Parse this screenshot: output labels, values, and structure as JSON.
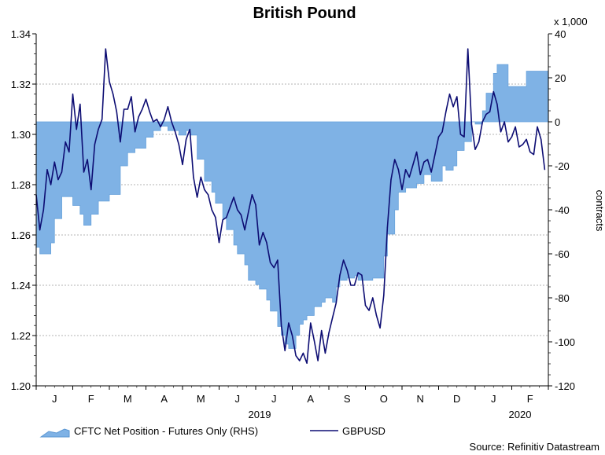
{
  "chart_data": {
    "type": "line",
    "title": "British Pound",
    "source": "Source: Refinitiv Datastream",
    "left_axis": {
      "label": "",
      "range": [
        1.2,
        1.34
      ],
      "ticks": [
        "1.20",
        "1.22",
        "1.24",
        "1.26",
        "1.28",
        "1.30",
        "1.32",
        "1.34"
      ]
    },
    "right_axis": {
      "label": "contracts",
      "multiplier": "x 1,000",
      "range": [
        -120,
        40
      ],
      "ticks": [
        "-120",
        "-100",
        "-80",
        "-60",
        "-40",
        "-20",
        "0",
        "20",
        "40"
      ]
    },
    "x_axis": {
      "months": [
        "J",
        "F",
        "M",
        "A",
        "M",
        "J",
        "J",
        "A",
        "S",
        "O",
        "N",
        "D",
        "J",
        "F"
      ],
      "year_labels": [
        "2019",
        "2020"
      ]
    },
    "legend": [
      "CFTC Net Position - Futures Only (RHS)",
      "GBPUSD"
    ],
    "series": [
      {
        "name": "GBPUSD",
        "axis": "left",
        "color": "#0d0d73",
        "x": [
          0,
          0.1,
          0.2,
          0.3,
          0.4,
          0.5,
          0.6,
          0.7,
          0.8,
          0.9,
          1,
          1.1,
          1.2,
          1.3,
          1.4,
          1.5,
          1.6,
          1.7,
          1.8,
          1.9,
          2,
          2.1,
          2.2,
          2.3,
          2.4,
          2.5,
          2.6,
          2.7,
          2.8,
          2.9,
          3,
          3.1,
          3.2,
          3.3,
          3.4,
          3.5,
          3.6,
          3.7,
          3.8,
          3.9,
          4,
          4.1,
          4.2,
          4.3,
          4.4,
          4.5,
          4.6,
          4.7,
          4.8,
          4.9,
          5,
          5.1,
          5.2,
          5.3,
          5.4,
          5.5,
          5.6,
          5.7,
          5.8,
          5.9,
          6,
          6.1,
          6.2,
          6.3,
          6.4,
          6.5,
          6.6,
          6.7,
          6.8,
          6.9,
          7,
          7.1,
          7.2,
          7.3,
          7.4,
          7.5,
          7.6,
          7.7,
          7.8,
          7.9,
          8,
          8.1,
          8.2,
          8.3,
          8.4,
          8.5,
          8.6,
          8.7,
          8.8,
          8.9,
          9,
          9.1,
          9.2,
          9.3,
          9.4,
          9.5,
          9.6,
          9.7,
          9.8,
          9.9,
          10,
          10.1,
          10.2,
          10.3,
          10.4,
          10.5,
          10.6,
          10.7,
          10.8,
          10.9,
          11,
          11.1,
          11.2,
          11.3,
          11.4,
          11.5,
          11.6,
          11.7,
          11.8,
          11.9,
          12,
          12.1,
          12.2,
          12.3,
          12.4,
          12.5,
          12.6,
          12.7,
          12.8,
          12.9,
          13,
          13.1,
          13.2,
          13.3,
          13.4,
          13.5,
          13.6,
          13.7,
          13.8,
          13.9
        ],
        "values": [
          1.276,
          1.262,
          1.27,
          1.286,
          1.28,
          1.289,
          1.282,
          1.285,
          1.297,
          1.293,
          1.316,
          1.302,
          1.312,
          1.285,
          1.29,
          1.278,
          1.296,
          1.302,
          1.306,
          1.334,
          1.321,
          1.316,
          1.309,
          1.297,
          1.31,
          1.31,
          1.315,
          1.301,
          1.307,
          1.31,
          1.314,
          1.309,
          1.305,
          1.306,
          1.303,
          1.306,
          1.311,
          1.305,
          1.301,
          1.296,
          1.288,
          1.298,
          1.302,
          1.283,
          1.275,
          1.283,
          1.278,
          1.276,
          1.27,
          1.267,
          1.257,
          1.266,
          1.267,
          1.271,
          1.275,
          1.27,
          1.268,
          1.262,
          1.269,
          1.276,
          1.272,
          1.256,
          1.261,
          1.257,
          1.249,
          1.247,
          1.25,
          1.224,
          1.214,
          1.225,
          1.22,
          1.212,
          1.21,
          1.213,
          1.209,
          1.225,
          1.218,
          1.21,
          1.222,
          1.213,
          1.221,
          1.227,
          1.233,
          1.244,
          1.25,
          1.246,
          1.24,
          1.24,
          1.245,
          1.244,
          1.232,
          1.23,
          1.235,
          1.228,
          1.223,
          1.236,
          1.263,
          1.282,
          1.29,
          1.286,
          1.278,
          1.286,
          1.283,
          1.288,
          1.293,
          1.284,
          1.289,
          1.29,
          1.285,
          1.292,
          1.299,
          1.301,
          1.309,
          1.316,
          1.311,
          1.315,
          1.3,
          1.299,
          1.334,
          1.304,
          1.294,
          1.297,
          1.305,
          1.308,
          1.309,
          1.317,
          1.312,
          1.301,
          1.305,
          1.297,
          1.299,
          1.303,
          1.295,
          1.296,
          1.298,
          1.293,
          1.292,
          1.303,
          1.298,
          1.286
        ],
        "marks": ""
      },
      {
        "name": "CFTC Net Position - Futures Only (RHS)",
        "axis": "right",
        "color": "#7fb2e5",
        "x": [
          0,
          0.1,
          0.2,
          0.3,
          0.4,
          0.5,
          0.6,
          0.7,
          0.8,
          0.9,
          1,
          1.1,
          1.2,
          1.3,
          1.4,
          1.5,
          1.6,
          1.7,
          1.8,
          1.9,
          2,
          2.1,
          2.2,
          2.3,
          2.4,
          2.5,
          2.6,
          2.7,
          2.8,
          2.9,
          3,
          3.1,
          3.2,
          3.3,
          3.4,
          3.5,
          3.6,
          3.7,
          3.8,
          3.9,
          4,
          4.1,
          4.2,
          4.3,
          4.4,
          4.5,
          4.6,
          4.7,
          4.8,
          4.9,
          5,
          5.1,
          5.2,
          5.3,
          5.4,
          5.5,
          5.6,
          5.7,
          5.8,
          5.9,
          6,
          6.1,
          6.2,
          6.3,
          6.4,
          6.5,
          6.6,
          6.7,
          6.8,
          6.9,
          7,
          7.1,
          7.2,
          7.3,
          7.4,
          7.5,
          7.6,
          7.7,
          7.8,
          7.9,
          8,
          8.1,
          8.2,
          8.3,
          8.4,
          8.5,
          8.6,
          8.7,
          8.8,
          8.9,
          9,
          9.1,
          9.2,
          9.3,
          9.4,
          9.5,
          9.6,
          9.7,
          9.8,
          9.9,
          10,
          10.1,
          10.2,
          10.3,
          10.4,
          10.5,
          10.6,
          10.7,
          10.8,
          10.9,
          11,
          11.1,
          11.2,
          11.3,
          11.4,
          11.5,
          11.6,
          11.7,
          11.8,
          11.9,
          12,
          12.1,
          12.2,
          12.3,
          12.4,
          12.5,
          12.6,
          12.7,
          12.8,
          12.9,
          13,
          13.1,
          13.2,
          13.3,
          13.4,
          13.5,
          13.6,
          13.7,
          13.8,
          13.9
        ],
        "values": [
          -57,
          -60,
          -60,
          -60,
          -55,
          -44,
          -44,
          -34,
          -34,
          -34,
          -38,
          -38,
          -42,
          -47,
          -47,
          -42,
          -42,
          -36,
          -36,
          -36,
          -33,
          -33,
          -33,
          -20,
          -20,
          -14,
          -14,
          -12,
          -12,
          -12,
          -7,
          -7,
          -4,
          -4,
          -2,
          -2,
          -4,
          -4,
          -4,
          -6,
          -6,
          -4,
          -6,
          -6,
          -17,
          -17,
          -27,
          -27,
          -32,
          -37,
          -37,
          -44,
          -49,
          -49,
          -56,
          -60,
          -60,
          -65,
          -72,
          -72,
          -74,
          -76,
          -76,
          -81,
          -86,
          -86,
          -93,
          -97,
          -101,
          -103,
          -103,
          -97,
          -92,
          -90,
          -88,
          -88,
          -84,
          -84,
          -82,
          -80,
          -80,
          -82,
          -75,
          -72,
          -72,
          -71,
          -71,
          -70,
          -72,
          -72,
          -72,
          -72,
          -71,
          -71,
          -71,
          -61,
          -51,
          -51,
          -40,
          -32,
          -32,
          -30,
          -30,
          -30,
          -28,
          -28,
          -24,
          -24,
          -27,
          -27,
          -27,
          -20,
          -22,
          -22,
          -20,
          -13,
          -13,
          -9,
          -9,
          0,
          -1,
          -1,
          5,
          13,
          13,
          22,
          26,
          26,
          26,
          16,
          16,
          16,
          16,
          16,
          23,
          23,
          23,
          23,
          23,
          23
        ],
        "marks": ""
      }
    ]
  }
}
